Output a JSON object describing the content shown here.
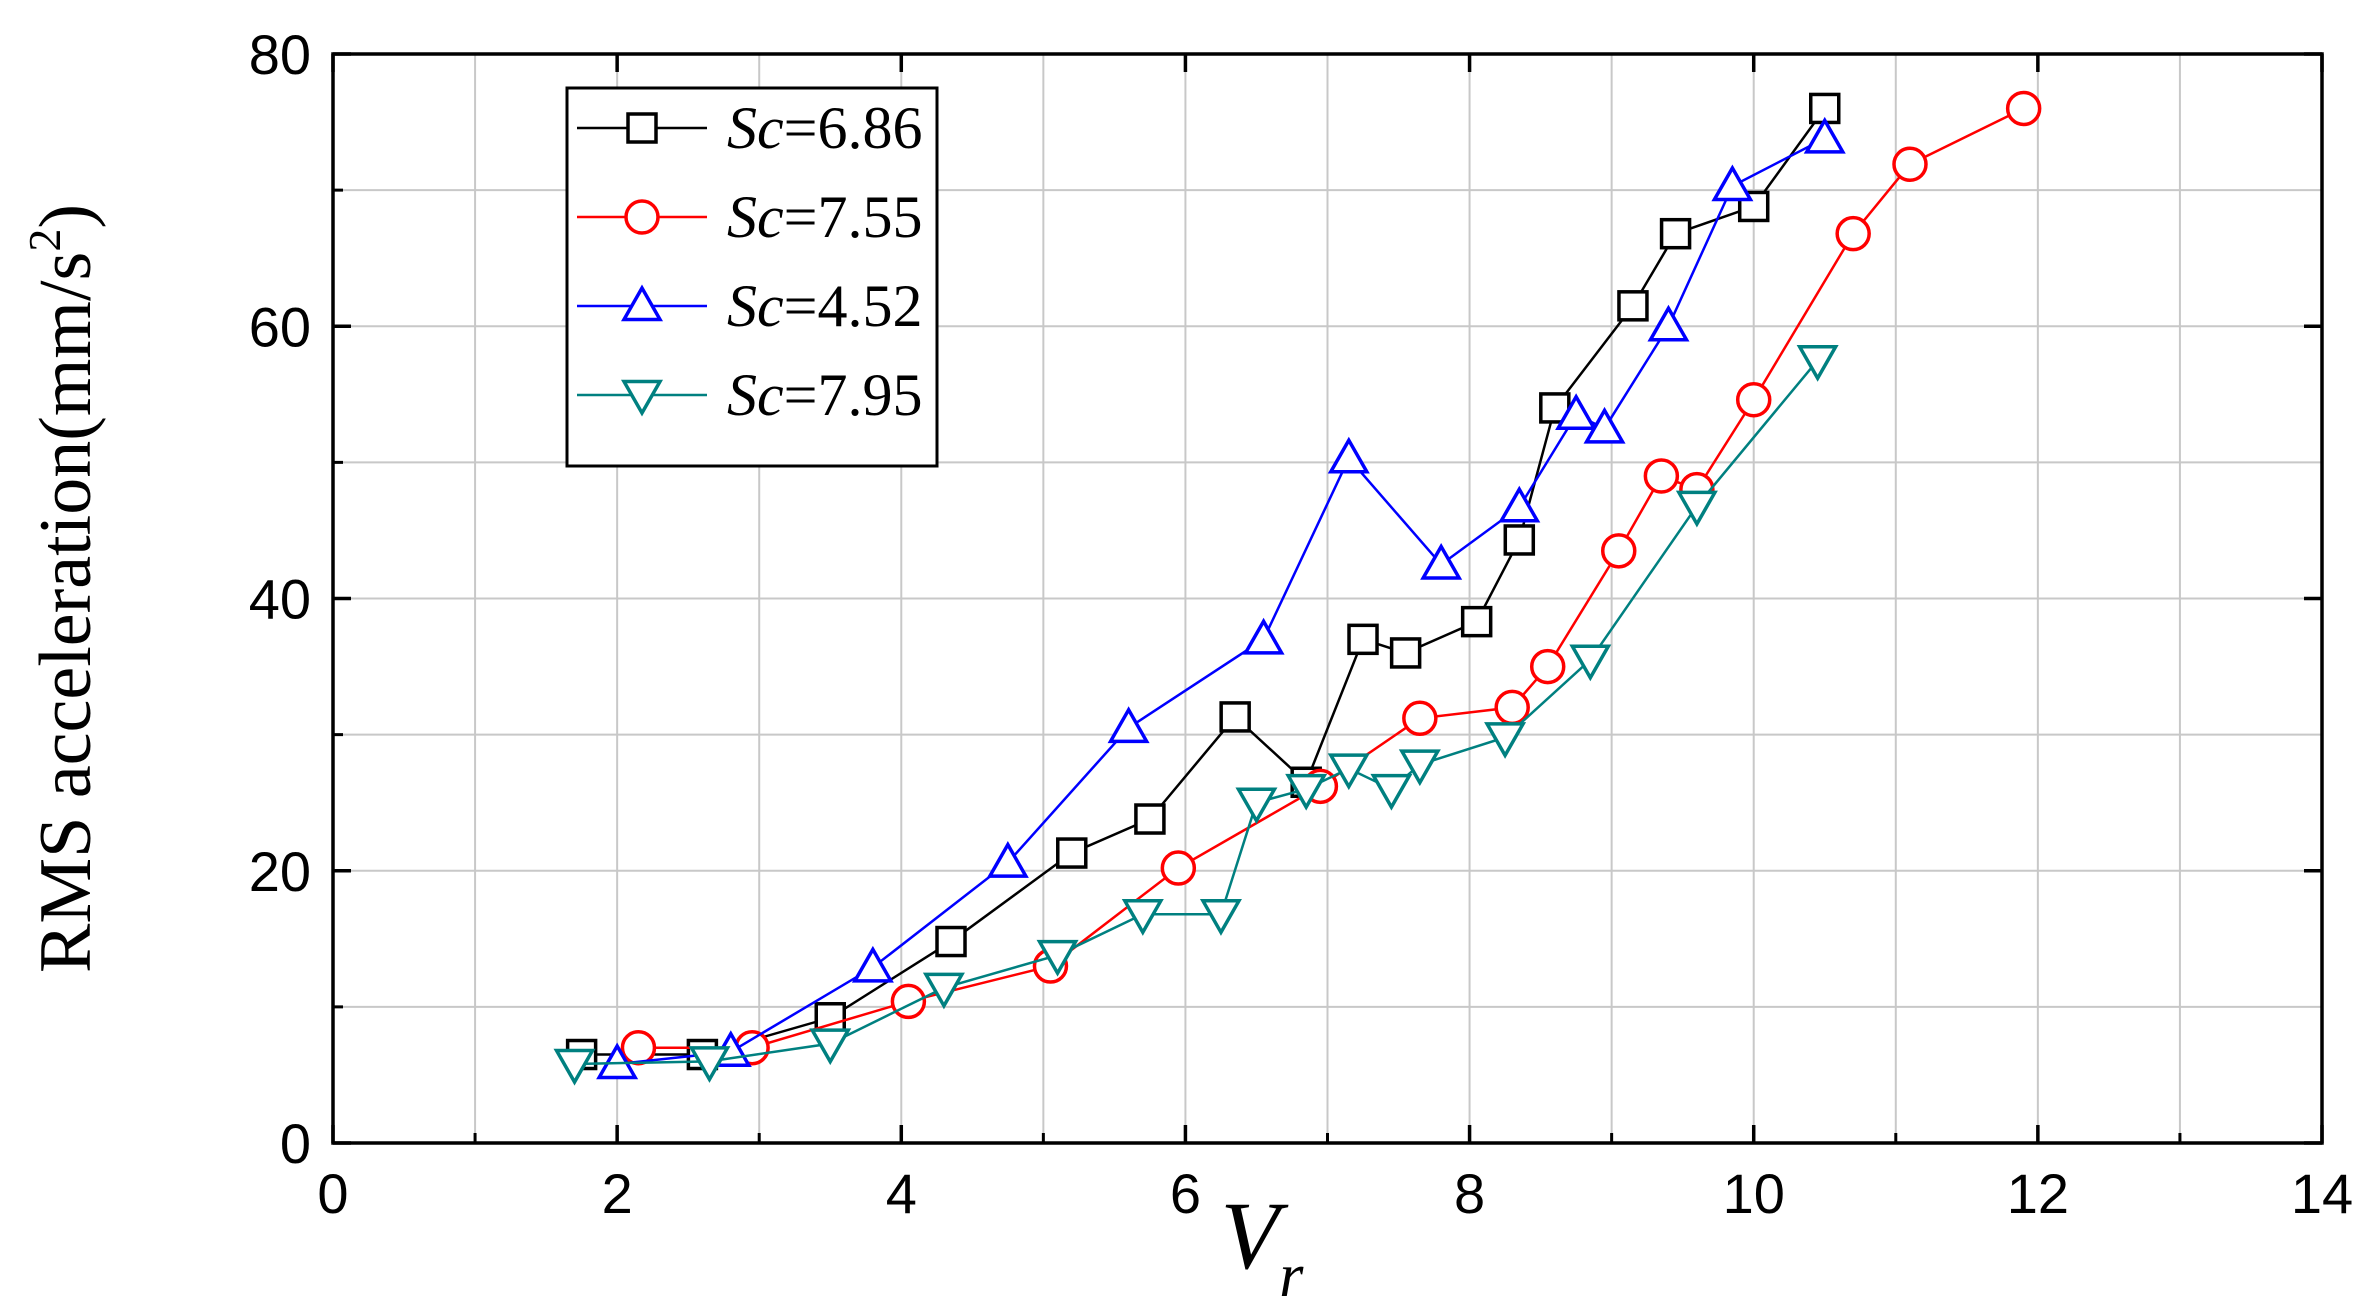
{
  "chart_data": {
    "type": "line",
    "title": "",
    "xlabel": "V",
    "xlabel_subscript": "r",
    "ylabel": "RMS acceleration(mm/s",
    "ylabel_superscript": "2",
    "ylabel_suffix": ")",
    "xlim": [
      0,
      14
    ],
    "ylim": [
      0,
      80
    ],
    "xticks": [
      0,
      2,
      4,
      6,
      8,
      10,
      12,
      14
    ],
    "yticks": [
      0,
      20,
      40,
      60,
      80
    ],
    "x_minor_step": 1,
    "y_minor_step": 10,
    "grid": true,
    "legend_position": "top-left",
    "series": [
      {
        "name": "Sc=6.86",
        "name_italic": "Sc",
        "name_value": "=6.86",
        "marker": "square",
        "color": "#000000",
        "x": [
          1.75,
          2.6,
          3.5,
          4.35,
          5.2,
          5.75,
          6.35,
          6.85,
          7.25,
          7.55,
          8.05,
          8.35,
          8.6,
          9.15,
          9.45,
          10.0,
          10.5
        ],
        "y": [
          6.5,
          6.5,
          9.2,
          14.8,
          21.3,
          23.8,
          31.3,
          26.5,
          37.0,
          36.0,
          38.3,
          44.3,
          54.0,
          61.5,
          66.8,
          68.8,
          76.0
        ]
      },
      {
        "name": "Sc=7.55",
        "name_italic": "Sc",
        "name_value": "=7.55",
        "marker": "circle",
        "color": "#ff0000",
        "x": [
          2.15,
          2.95,
          4.05,
          5.05,
          5.95,
          6.95,
          7.65,
          8.3,
          8.55,
          9.05,
          9.35,
          9.6,
          10.0,
          10.7,
          11.1,
          11.9
        ],
        "y": [
          7.0,
          7.0,
          10.4,
          13.0,
          20.2,
          26.2,
          31.2,
          32.0,
          35.0,
          43.5,
          49.0,
          48.0,
          54.6,
          66.8,
          71.9,
          76.0
        ]
      },
      {
        "name": "Sc=4.52",
        "name_italic": "Sc",
        "name_value": "=4.52",
        "marker": "triangle-up",
        "color": "#0000ff",
        "x": [
          2.0,
          2.8,
          3.8,
          4.75,
          5.6,
          6.55,
          7.15,
          7.8,
          8.35,
          8.75,
          8.95,
          9.4,
          9.85,
          10.5
        ],
        "y": [
          5.8,
          6.7,
          12.9,
          20.6,
          30.5,
          37.0,
          50.3,
          42.5,
          46.7,
          53.5,
          52.5,
          60.0,
          70.3,
          73.8
        ]
      },
      {
        "name": "Sc=7.95",
        "name_italic": "Sc",
        "name_value": "=7.95",
        "marker": "triangle-down",
        "color": "#008080",
        "x": [
          1.7,
          2.65,
          3.5,
          4.3,
          5.1,
          5.7,
          6.25,
          6.5,
          6.85,
          7.15,
          7.45,
          7.65,
          8.25,
          8.85,
          9.6,
          10.45
        ],
        "y": [
          5.8,
          6.0,
          7.3,
          11.4,
          13.8,
          16.8,
          16.8,
          25.0,
          26.0,
          27.5,
          26.0,
          27.8,
          29.8,
          35.5,
          46.8,
          57.5
        ]
      }
    ]
  }
}
